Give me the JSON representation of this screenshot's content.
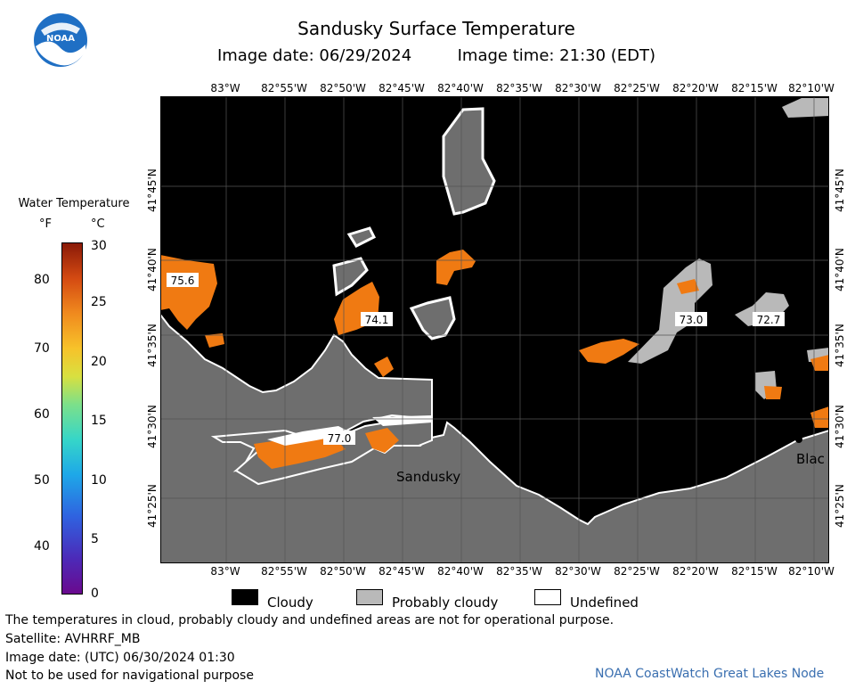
{
  "header": {
    "title": "Sandusky Surface Temperature",
    "subtitle_date": "Image date: 06/29/2024",
    "subtitle_time": "Image time: 21:30 (EDT)"
  },
  "logo": {
    "text": "NOAA"
  },
  "map": {
    "lon_ticks": [
      "83°W",
      "82°55'W",
      "82°50'W",
      "82°45'W",
      "82°40'W",
      "82°35'W",
      "82°30'W",
      "82°25'W",
      "82°20'W",
      "82°15'W",
      "82°10'W"
    ],
    "lat_ticks": [
      "41°45'N",
      "41°40'N",
      "41°35'N",
      "41°30'N",
      "41°25'N"
    ],
    "place_labels": [
      "Sandusky",
      "Blac"
    ],
    "temperature_labels": [
      "75.6",
      "74.1",
      "73.0",
      "72.7",
      "77.0"
    ],
    "colors": {
      "land": "#6e6e6e",
      "cloud": "#000000",
      "probably_cloudy": "#b9b9b9",
      "undefined": "#ffffff",
      "warm_water": "#f07a12"
    }
  },
  "legend": {
    "title": "Water Temperature",
    "unit_f": "°F",
    "unit_c": "°C",
    "f_ticks": [
      "80",
      "70",
      "60",
      "50",
      "40"
    ],
    "c_ticks": [
      "30",
      "25",
      "20",
      "15",
      "10",
      "5",
      "0"
    ]
  },
  "key": [
    {
      "label": "Cloudy",
      "color": "#000000"
    },
    {
      "label": "Probably cloudy",
      "color": "#b9b9b9"
    },
    {
      "label": "Undefined",
      "color": "#ffffff"
    }
  ],
  "notes": [
    "The temperatures in cloud, probably cloudy and undefined areas are not for operational purpose.",
    "Satellite: AVHRRF_MB",
    "Image date: (UTC) 06/30/2024  01:30",
    "Not to be used for navigational purpose"
  ],
  "credit": "NOAA CoastWatch Great Lakes Node"
}
